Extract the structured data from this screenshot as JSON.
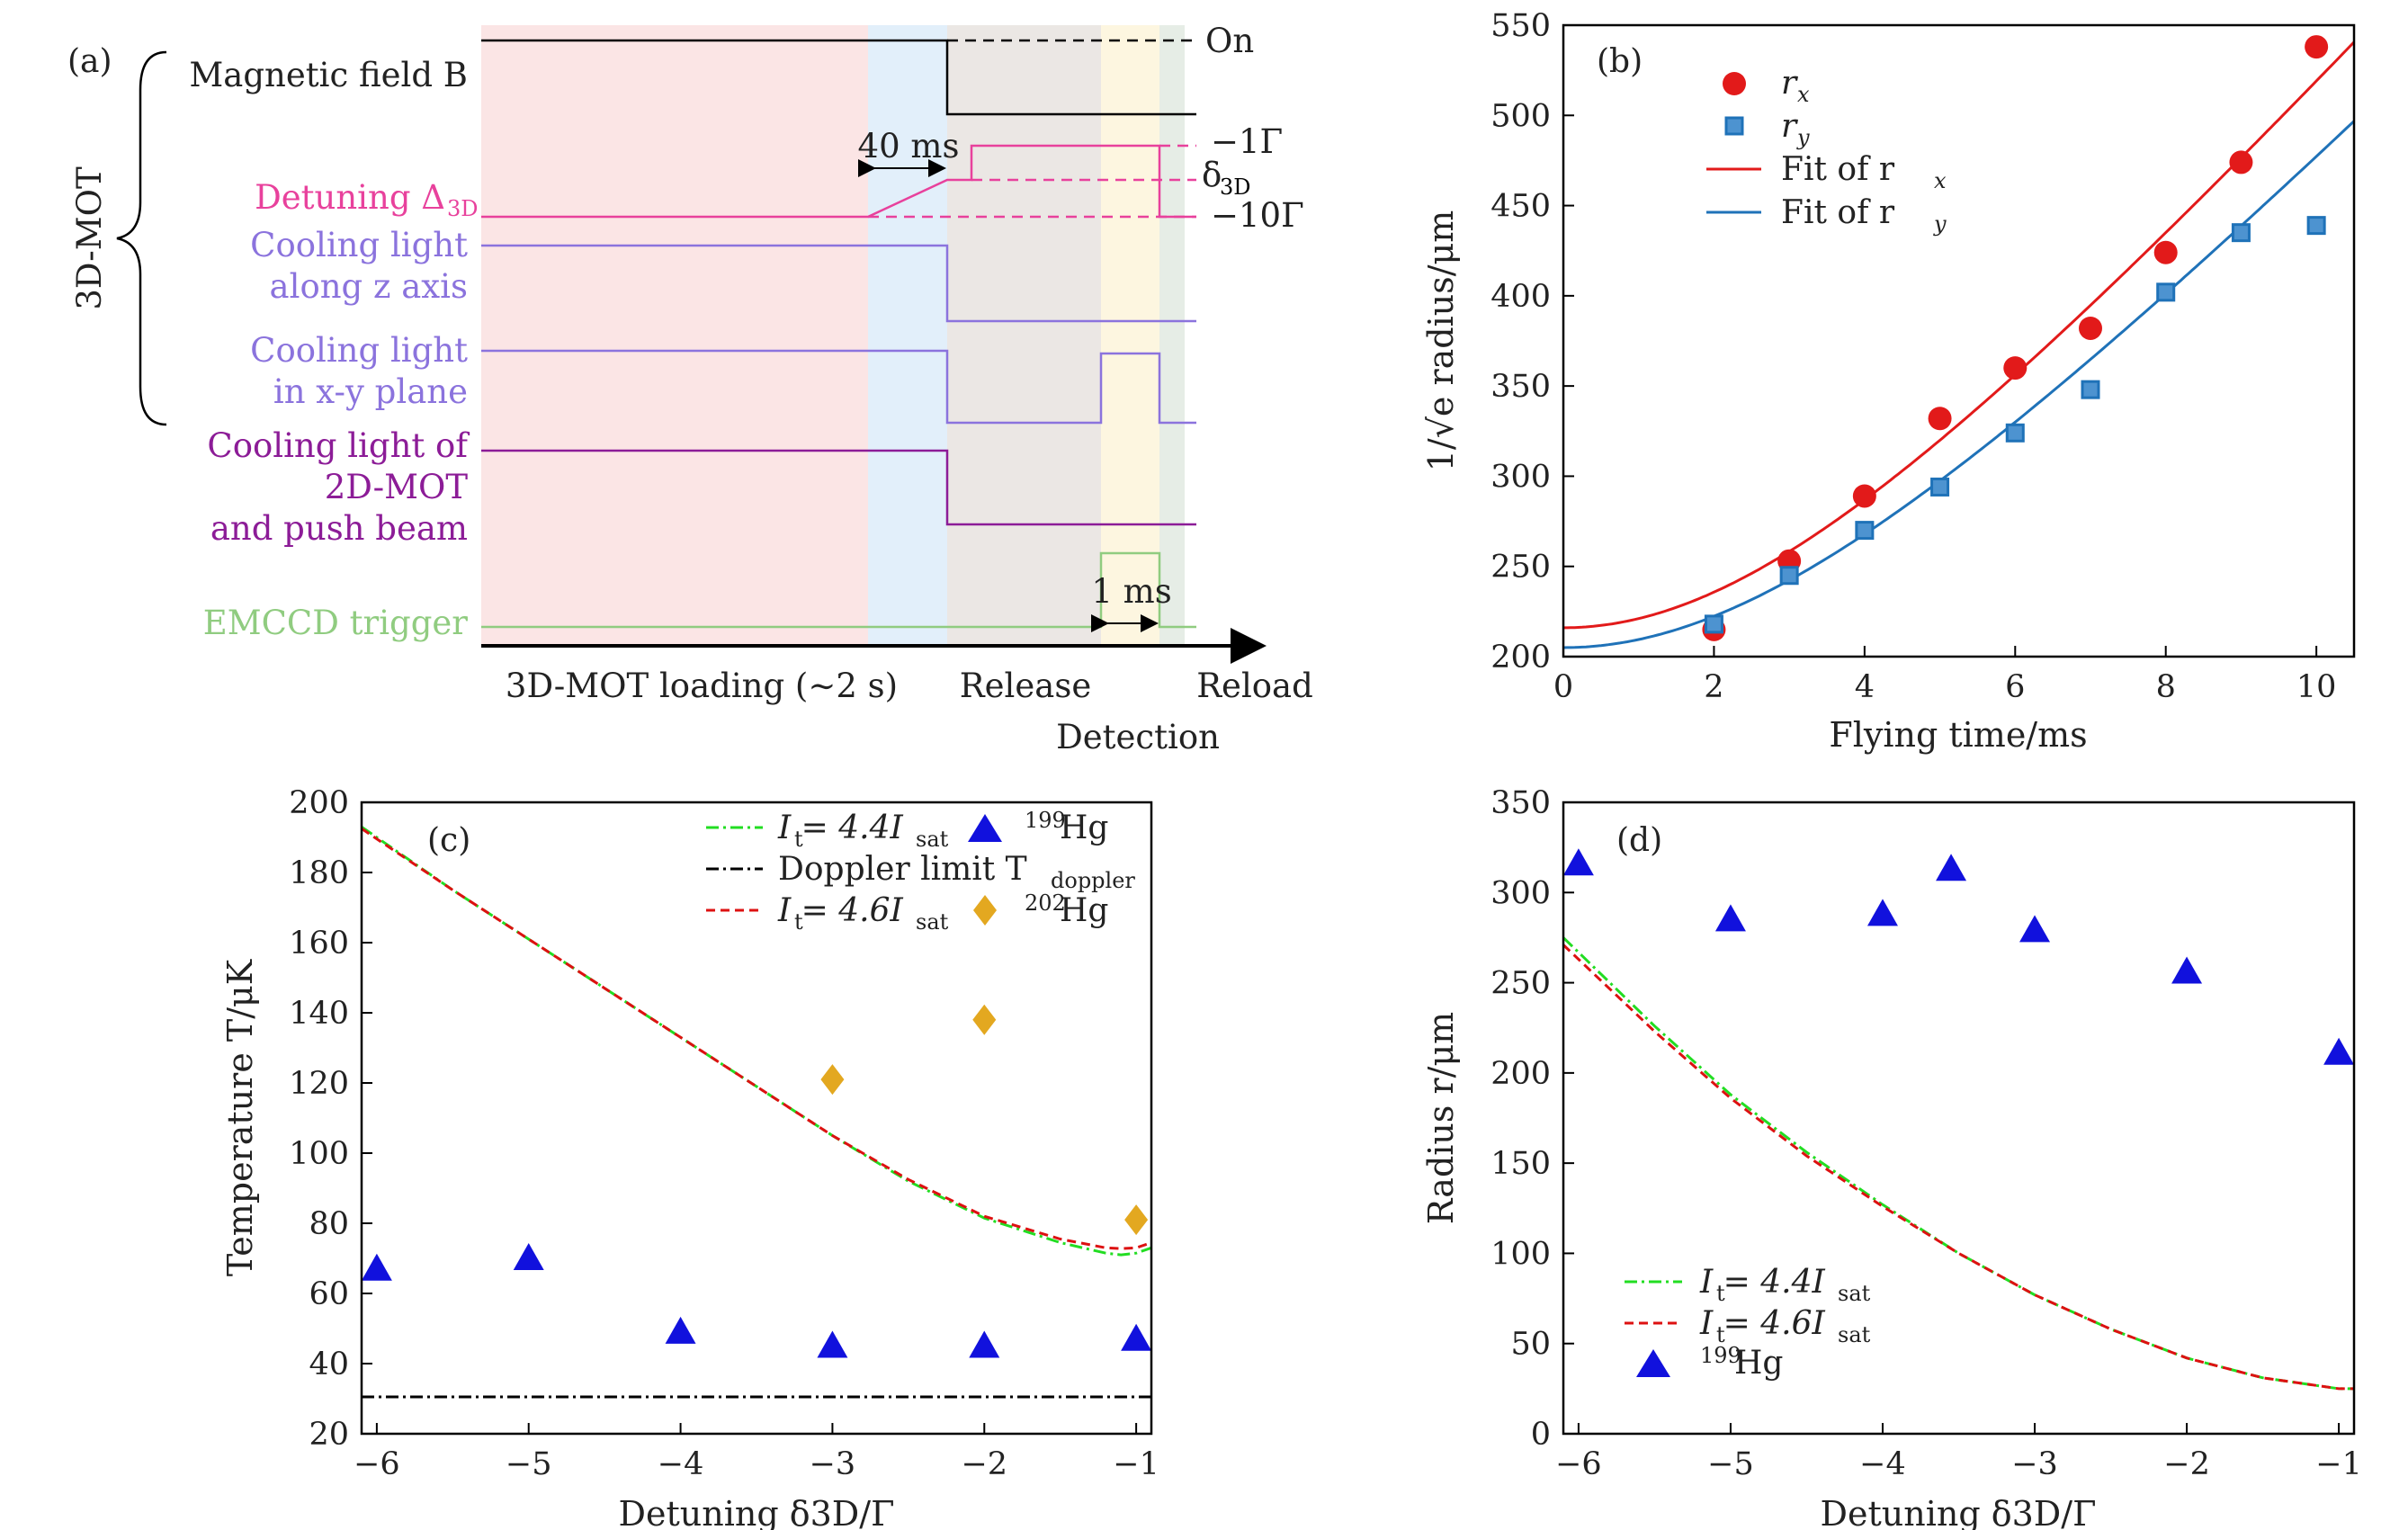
{
  "colors": {
    "magnetic": "#000000",
    "detuning": "#e8419c",
    "cooling": "#8b73dd",
    "cooling2d": "#8c1c97",
    "trigger": "#90cc80",
    "loading_bg": "#fbe5e5",
    "ramp_bg": "#e2effa",
    "release_bg": "#ebe7e4",
    "detection_bg": "#fdf6e0",
    "reload_bg": "#e6ede6",
    "fit_rx": "#e21a1a",
    "fit_ry": "#1f72b8",
    "green": "#22dd22",
    "red": "#dd1111",
    "hg199": "#1111dd",
    "hg202": "#e3a820"
  },
  "panel_a": {
    "tag": "(a)",
    "group_label": "3D-MOT",
    "signals": {
      "magnetic": "Magnetic field B",
      "detuning": "Detuning Δ",
      "detuning_sub": "3D",
      "cooling_z_1": "Cooling light",
      "cooling_z_2": "along z axis",
      "cooling_xy_1": "Cooling light",
      "cooling_xy_2": "in x-y plane",
      "cooling_2d_1": "Cooling light of",
      "cooling_2d_2": "2D-MOT",
      "cooling_2d_3": "and push beam",
      "trigger": "EMCCD trigger"
    },
    "annotations": {
      "on": "On",
      "minus1": "−1Γ",
      "delta": "δ",
      "delta_sub": "3D",
      "minus10": "−10Γ",
      "ramp": "40 ms",
      "pulse": "1 ms"
    },
    "phases": {
      "loading": "3D-MOT loading (∼2 s)",
      "release": "Release",
      "reload": "Reload",
      "detection": "Detection"
    }
  },
  "chart_data": [
    {
      "id": "b",
      "type": "scatter",
      "tag": "(b)",
      "xlabel": "Flying time/ms",
      "ylabel": "1/√e radius/μm",
      "xlim": [
        0,
        10.5
      ],
      "ylim": [
        200,
        550
      ],
      "xticks": [
        0,
        2,
        4,
        6,
        8,
        10
      ],
      "yticks": [
        200,
        250,
        300,
        350,
        400,
        450,
        500,
        550
      ],
      "legend_position": "top-left",
      "series": [
        {
          "name": "r",
          "sub": "x",
          "marker": "circle",
          "color": "#e21a1a",
          "x": [
            2,
            3,
            4,
            5,
            6,
            7,
            8,
            9,
            10
          ],
          "y": [
            215,
            253,
            289,
            332,
            360,
            382,
            424,
            474,
            538
          ]
        },
        {
          "name": "r",
          "sub": "y",
          "marker": "square",
          "color": "#1f72b8",
          "x": [
            2,
            3,
            4,
            5,
            6,
            7,
            8,
            9,
            10
          ],
          "y": [
            218,
            245,
            270,
            294,
            324,
            348,
            402,
            435,
            439
          ]
        }
      ],
      "fits": [
        {
          "name": "Fit of r",
          "sub": "x",
          "color": "#e21a1a",
          "r0": 216,
          "v": 47.2
        },
        {
          "name": "Fit of r",
          "sub": "y",
          "color": "#1f72b8",
          "r0": 205,
          "v": 43.1
        }
      ]
    },
    {
      "id": "c",
      "type": "scatter",
      "tag": "(c)",
      "xlabel": "Detuning δ3D/Γ",
      "ylabel": "Temperature T/μK",
      "xlim": [
        -6.1,
        -0.9
      ],
      "ylim": [
        20,
        200
      ],
      "xticks": [
        -6,
        -5,
        -4,
        -3,
        -2,
        -1
      ],
      "yticks": [
        20,
        40,
        60,
        80,
        100,
        120,
        140,
        160,
        180,
        200
      ],
      "legend_position": "top-right",
      "legend": {
        "green": "I = 4.4I",
        "doppler": "Doppler limit T",
        "doppler_sub": "doppler",
        "red": "I = 4.6I",
        "t_sub": "t",
        "sat_sub": "sat",
        "hg199": "Hg",
        "hg199_sup": "199",
        "hg202": "Hg",
        "hg202_sup": "202"
      },
      "doppler_limit": 30.5,
      "curves": {
        "green": {
          "x": [
            -6.1,
            -5.5,
            -5.0,
            -4.5,
            -4.0,
            -3.5,
            -3.0,
            -2.5,
            -2.0,
            -1.5,
            -1.2,
            -1.1,
            -1.0,
            -0.9
          ],
          "y": [
            193,
            175,
            161,
            147,
            133,
            119,
            105,
            92,
            81.5,
            74.5,
            71.5,
            71,
            71.5,
            73
          ]
        },
        "red": {
          "x": [
            -6.1,
            -5.5,
            -5.0,
            -4.5,
            -4.0,
            -3.5,
            -3.0,
            -2.5,
            -2.0,
            -1.5,
            -1.2,
            -1.1,
            -1.0,
            -0.9
          ],
          "y": [
            192.5,
            175,
            161,
            147,
            133,
            119,
            105,
            92.5,
            82,
            75.5,
            73,
            72.8,
            73,
            74.5
          ]
        }
      },
      "series": [
        {
          "name": "199Hg",
          "marker": "triangle",
          "color": "#1111dd",
          "x": [
            -6,
            -5,
            -4,
            -3,
            -2,
            -1
          ],
          "y": [
            67,
            70,
            49,
            45,
            45,
            47
          ]
        },
        {
          "name": "202Hg",
          "marker": "diamond",
          "color": "#e3a820",
          "x": [
            -3,
            -2,
            -1
          ],
          "y": [
            121,
            138,
            81
          ]
        }
      ]
    },
    {
      "id": "d",
      "type": "scatter",
      "tag": "(d)",
      "xlabel": "Detuning δ3D/Γ",
      "ylabel": "Radius r/μm",
      "xlim": [
        -6.1,
        -0.9
      ],
      "ylim": [
        0,
        350
      ],
      "xticks": [
        -6,
        -5,
        -4,
        -3,
        -2,
        -1
      ],
      "yticks": [
        0,
        50,
        100,
        150,
        200,
        250,
        300,
        350
      ],
      "legend_position": "bottom-left",
      "legend": {
        "green": "I = 4.4I",
        "red": "I = 4.6I",
        "t_sub": "t",
        "sat_sub": "sat",
        "hg199": "Hg",
        "hg199_sup": "199"
      },
      "curves": {
        "green": {
          "x": [
            -6.1,
            -5.5,
            -5.0,
            -4.5,
            -4.0,
            -3.5,
            -3.0,
            -2.5,
            -2.0,
            -1.5,
            -1.0,
            -0.9
          ],
          "y": [
            275,
            226,
            188,
            156,
            127,
            100,
            77,
            58,
            42,
            31,
            25,
            25
          ]
        },
        "red": {
          "x": [
            -6.1,
            -5.5,
            -5.0,
            -4.5,
            -4.0,
            -3.5,
            -3.0,
            -2.5,
            -2.0,
            -1.5,
            -1.0,
            -0.9
          ],
          "y": [
            271,
            223,
            186,
            154,
            126,
            100,
            77,
            58,
            42,
            31,
            25,
            25
          ]
        }
      },
      "series": [
        {
          "name": "199Hg",
          "marker": "triangle",
          "color": "#1111dd",
          "x": [
            -6,
            -5,
            -4,
            -3.55,
            -3,
            -2,
            -1
          ],
          "y": [
            316,
            285,
            288,
            313,
            279,
            256,
            211
          ]
        }
      ]
    }
  ]
}
